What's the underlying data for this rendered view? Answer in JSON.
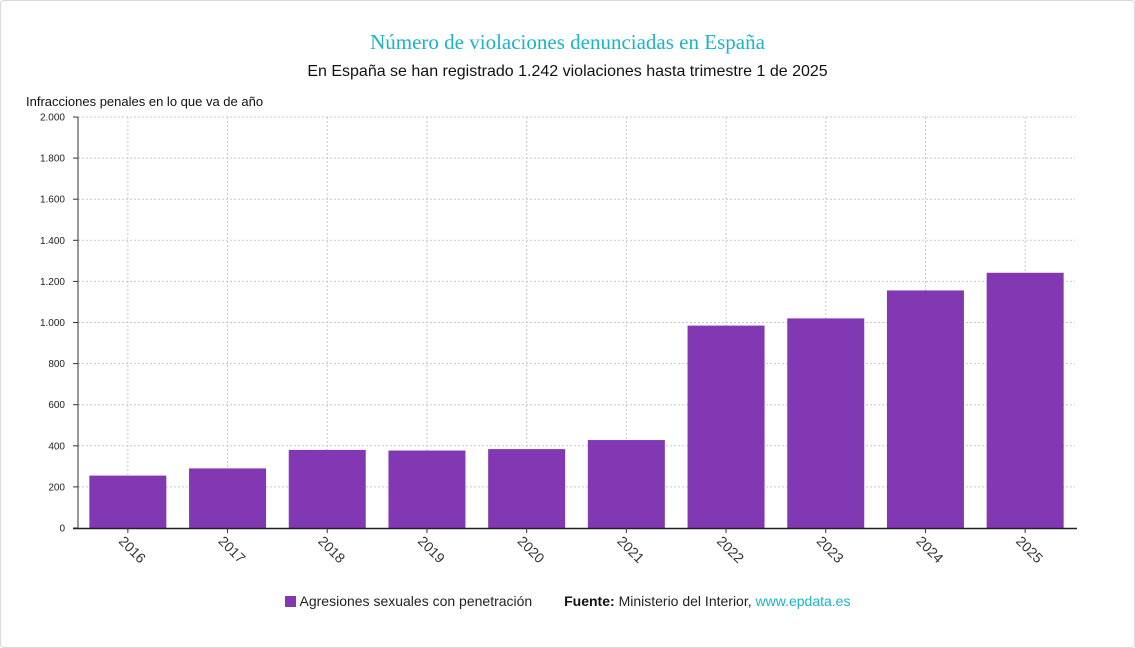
{
  "chart_data": {
    "type": "bar",
    "title": "Número de violaciones denunciadas en España",
    "subtitle": "En España se han registrado 1.242 violaciones hasta trimestre 1 de 2025",
    "ylabel": "Infracciones penales en lo que va de año",
    "xlabel": "",
    "categories": [
      "2016",
      "2017",
      "2018",
      "2019",
      "2020",
      "2021",
      "2022",
      "2023",
      "2024",
      "2025"
    ],
    "series": [
      {
        "name": "Agresiones sexuales con penetración",
        "values": [
          255,
          290,
          380,
          377,
          384,
          428,
          985,
          1020,
          1156,
          1242
        ],
        "color": "#8338b3"
      }
    ],
    "ylim": [
      0,
      2000
    ],
    "yticks": [
      0,
      200,
      400,
      600,
      800,
      1000,
      1200,
      1400,
      1600,
      1800,
      2000
    ],
    "ytick_labels": [
      "0",
      "200",
      "400",
      "600",
      "800",
      "1.000",
      "1.200",
      "1.400",
      "1.600",
      "1.800",
      "2.000"
    ],
    "grid": true,
    "legend_position": "bottom"
  },
  "source": {
    "label": "Fuente:",
    "text": "Ministerio del Interior,",
    "link": "www.epdata.es"
  },
  "colors": {
    "bar": "#8338b3",
    "title": "#1bb3c9",
    "grid": "#c8c8c8"
  }
}
